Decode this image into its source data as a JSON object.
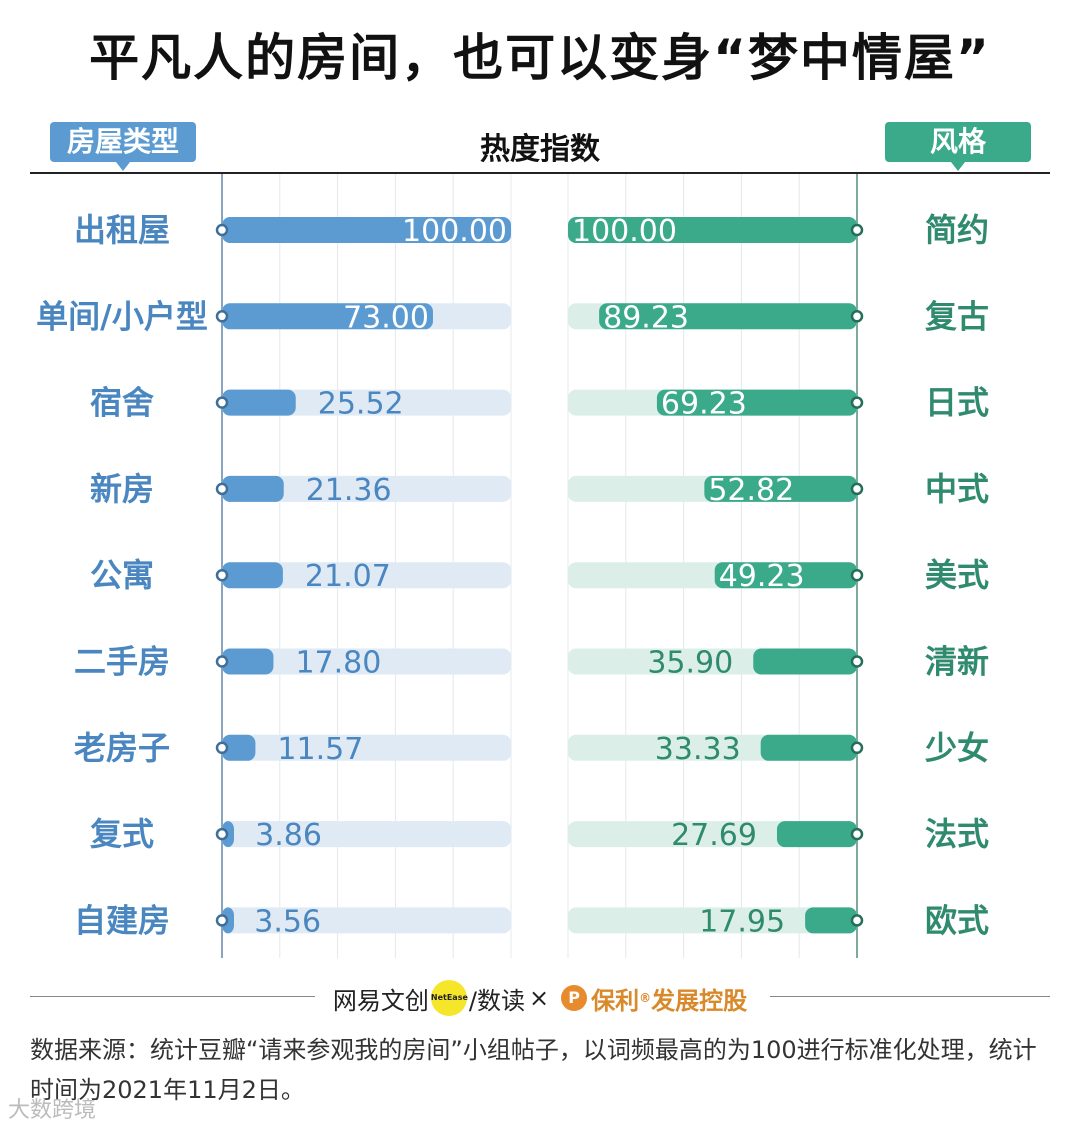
{
  "title": "平凡人的房间，也可以变身“梦中情屋”",
  "header": {
    "left_tag": "房屋类型",
    "center": "热度指数",
    "right_tag": "风格"
  },
  "chart_data": [
    {
      "type": "bar",
      "name": "房屋类型",
      "orientation": "horizontal",
      "direction": "left-to-right",
      "categories": [
        "出租屋",
        "单间/小户型",
        "宿舍",
        "新房",
        "公寓",
        "二手房",
        "老房子",
        "复式",
        "自建房"
      ],
      "values": [
        100.0,
        73.0,
        25.52,
        21.36,
        21.07,
        17.8,
        11.57,
        3.86,
        3.56
      ],
      "value_labels": [
        "100.00",
        "73.00",
        "25.52",
        "21.36",
        "21.07",
        "17.80",
        "11.57",
        "3.86",
        "3.56"
      ],
      "xlim": [
        0,
        100
      ],
      "color": "#5b9bd2",
      "track_color": "#dfeaf5",
      "grid": true
    },
    {
      "type": "bar",
      "name": "风格",
      "orientation": "horizontal",
      "direction": "right-to-left",
      "categories": [
        "简约",
        "复古",
        "日式",
        "中式",
        "美式",
        "清新",
        "少女",
        "法式",
        "欧式"
      ],
      "values": [
        100.0,
        89.23,
        69.23,
        52.82,
        49.23,
        35.9,
        33.33,
        27.69,
        17.95
      ],
      "value_labels": [
        "100.00",
        "89.23",
        "69.23",
        "52.82",
        "49.23",
        "35.90",
        "33.33",
        "27.69",
        "17.95"
      ],
      "xlim": [
        0,
        100
      ],
      "color": "#3aaa8a",
      "track_color": "#dbefe8",
      "grid": true
    }
  ],
  "footer": {
    "brand_1": "网易文创",
    "netease_badge": "NetEase",
    "brand_2": "/数读",
    "times": "×",
    "poly_mark": "P",
    "brand_3": "保利",
    "registered": "®",
    "brand_4": "发展控股",
    "source": "数据来源：统计豆瓣“请来参观我的房间”小组帖子，以词频最高的为100进行标准化处理，统计时间为2021年11月2日。",
    "watermark": "大数跨境"
  },
  "colors": {
    "blue": "#5b9bd2",
    "blue_text": "#4a86bf",
    "green": "#3aaa8a",
    "green_text": "#2f8a6e"
  }
}
